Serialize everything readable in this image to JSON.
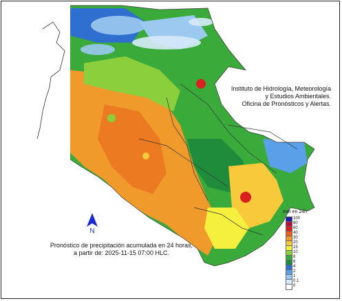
{
  "agency": {
    "line1": "Instituto de Hidrología, Meteorología",
    "line2": "y Estudios Ambientales.",
    "line3": "Oficina de Pronósticos y Alertas."
  },
  "caption": {
    "line1": "Pronóstico de precipitación acumulada en 24 horas,",
    "line2": "a partir de: 2025-11-15 07:00 HLC."
  },
  "north_arrow": {
    "label": "N",
    "icon": "north-arrow-icon",
    "color": "#1a2bd6"
  },
  "legend": {
    "title": "mm en 24h",
    "classes": [
      {
        "label": "100",
        "color": "#1e1ea0"
      },
      {
        "label": "80",
        "color": "#b0103a"
      },
      {
        "label": "60",
        "color": "#d9201e"
      },
      {
        "label": "40",
        "color": "#e8601a"
      },
      {
        "label": "30",
        "color": "#f19a2c"
      },
      {
        "label": "20",
        "color": "#f8c93a"
      },
      {
        "label": "15",
        "color": "#f5ef3d"
      },
      {
        "label": "10",
        "color": "#8ccf3c"
      },
      {
        "label": "8",
        "color": "#3aab3a"
      },
      {
        "label": "6",
        "color": "#1f8c3c"
      },
      {
        "label": "4",
        "color": "#2f6fcf"
      },
      {
        "label": "2",
        "color": "#5aa0e8"
      },
      {
        "label": "1",
        "color": "#9cc9f0"
      },
      {
        "label": "0.1",
        "color": "#d7ebfa"
      },
      {
        "label": "0",
        "color": "#ffffff"
      }
    ]
  },
  "colors": {
    "ocean": "#ffffff",
    "border_lines": "#333333",
    "dominant_rain": "#f19a2c"
  }
}
